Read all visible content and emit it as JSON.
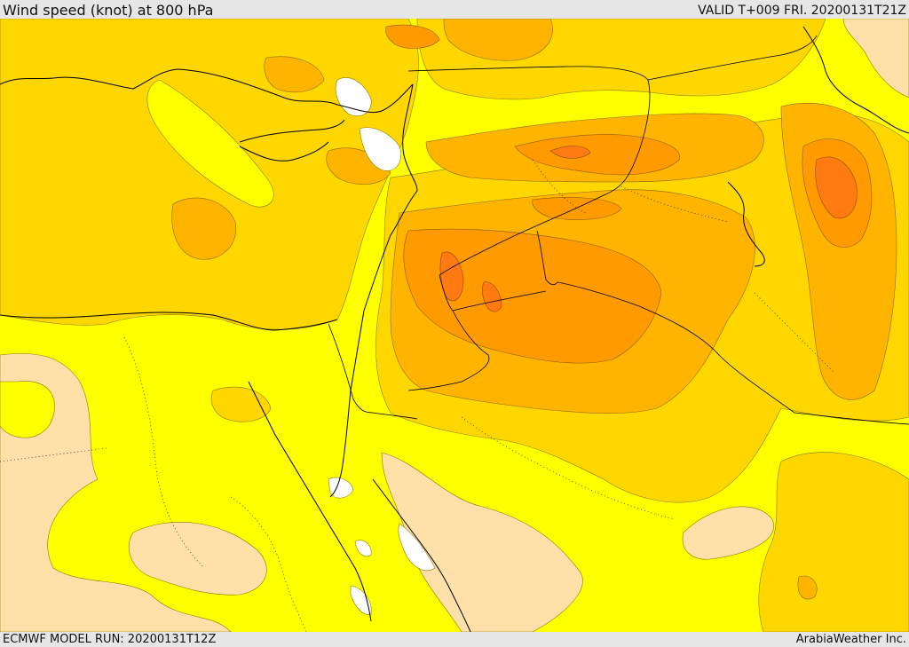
{
  "header": {
    "title": "Wind speed (knot) at 800 hPa",
    "valid_time": "VALID T+009 FRI. 20200131T21Z"
  },
  "footer": {
    "model_run": "ECMWF MODEL RUN: 20200131T12Z",
    "credit": "ArabiaWeather Inc."
  },
  "legend_colors": {
    "lowest": "#ffe0a8",
    "low": "#ffff00",
    "mid": "#ffd700",
    "mid_high": "#ffb400",
    "high": "#ff9a00",
    "highest": "#ff7a10",
    "water_gap": "#ffffff"
  }
}
